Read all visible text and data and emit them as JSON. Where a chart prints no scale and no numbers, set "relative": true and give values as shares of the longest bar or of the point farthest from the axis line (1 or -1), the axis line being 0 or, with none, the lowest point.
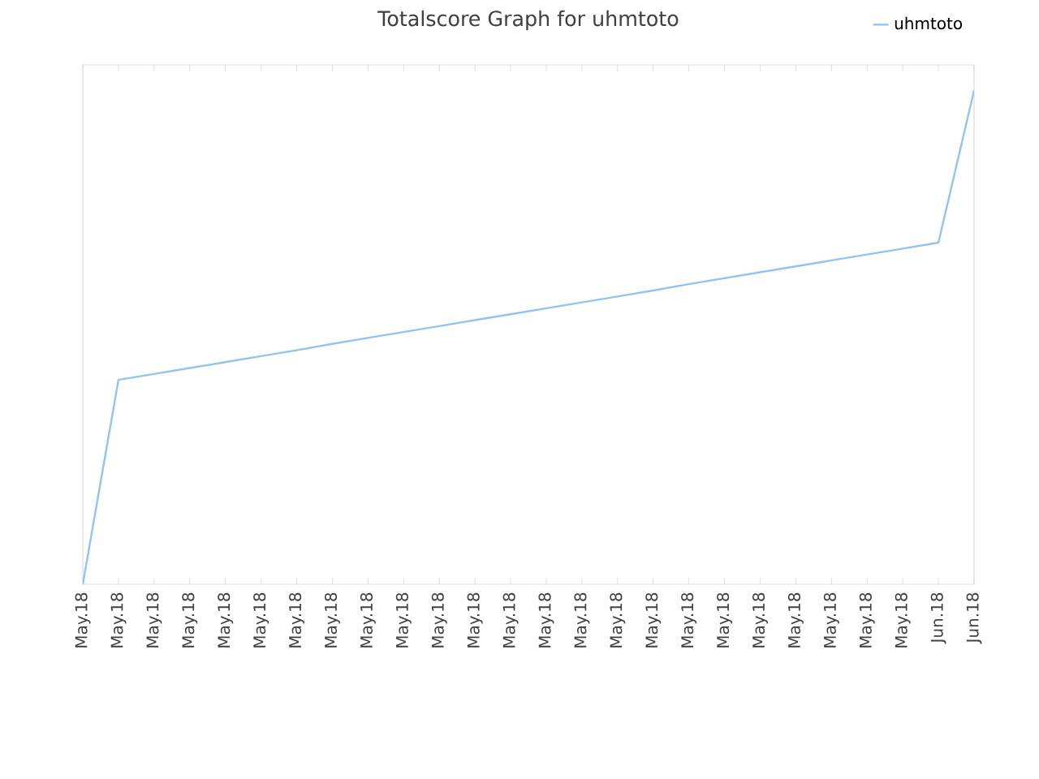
{
  "chart_data": {
    "type": "line",
    "title": "Totalscore Graph for uhmtoto",
    "categories": [
      "May.18",
      "May.18",
      "May.18",
      "May.18",
      "May.18",
      "May.18",
      "May.18",
      "May.18",
      "May.18",
      "May.18",
      "May.18",
      "May.18",
      "May.18",
      "May.18",
      "May.18",
      "May.18",
      "May.18",
      "May.18",
      "May.18",
      "May.18",
      "May.18",
      "May.18",
      "May.18",
      "May.18",
      "Jun.18",
      "Jun.18"
    ],
    "relative": true,
    "series": [
      {
        "name": "uhmtoto",
        "color": "#90c4f4",
        "values": [
          0,
          0.414,
          0.426,
          0.438,
          0.45,
          0.462,
          0.474,
          0.487,
          0.499,
          0.511,
          0.523,
          0.535,
          0.547,
          0.559,
          0.571,
          0.583,
          0.595,
          0.608,
          0.62,
          0.632,
          0.644,
          0.656,
          0.668,
          0.68,
          0.692,
          1
        ]
      }
    ],
    "legend": "top right",
    "marker": "none",
    "line_style": "solid"
  }
}
